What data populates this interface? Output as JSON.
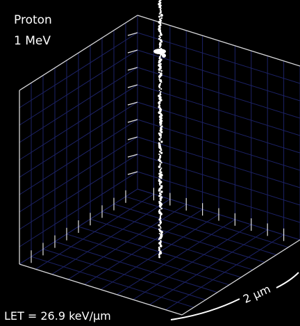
{
  "labels": {
    "particle": "Proton",
    "energy": "1 MeV",
    "let": "LET = 26.9 keV/µm",
    "scale": "2 µm"
  }
}
